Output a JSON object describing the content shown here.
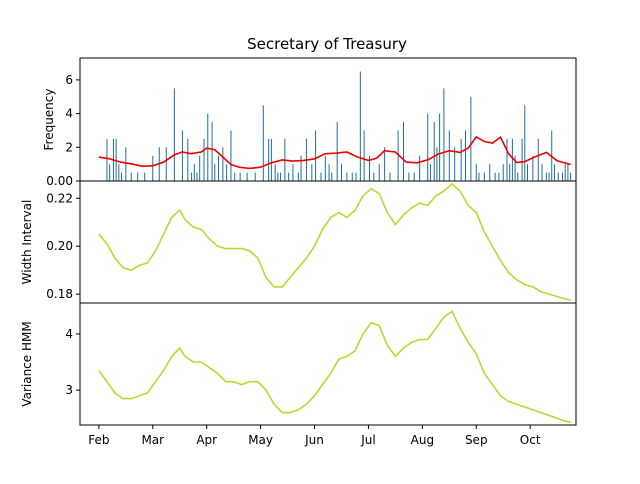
{
  "figure": {
    "title": "Secretary of Treasury",
    "x_tick_labels": [
      "Feb",
      "Mar",
      "Apr",
      "May",
      "Jun",
      "Jul",
      "Aug",
      "Sep",
      "Oct"
    ]
  },
  "chart_data": [
    {
      "type": "bar",
      "panel": "top",
      "ylabel": "Frequency",
      "ylim": [
        0,
        7.3
      ],
      "y_ticks": [
        0,
        2,
        4,
        6
      ],
      "x_unit": "months since Feb 1",
      "xlim": [
        -0.35,
        8.85
      ],
      "bars": {
        "color": "#1f6e9e",
        "x": [
          0.15,
          0.2,
          0.27,
          0.32,
          0.37,
          0.42,
          0.5,
          0.6,
          0.72,
          0.85,
          1.0,
          1.12,
          1.25,
          1.4,
          1.55,
          1.65,
          1.72,
          1.77,
          1.82,
          1.87,
          1.95,
          2.02,
          2.1,
          2.15,
          2.22,
          2.3,
          2.37,
          2.45,
          2.52,
          2.62,
          2.75,
          2.9,
          3.05,
          3.15,
          3.2,
          3.27,
          3.32,
          3.37,
          3.45,
          3.52,
          3.6,
          3.7,
          3.75,
          3.85,
          3.95,
          4.02,
          4.12,
          4.2,
          4.27,
          4.32,
          4.42,
          4.5,
          4.6,
          4.7,
          4.77,
          4.85,
          4.92,
          5.02,
          5.1,
          5.2,
          5.3,
          5.4,
          5.55,
          5.65,
          5.75,
          5.85,
          5.95,
          6.1,
          6.15,
          6.22,
          6.27,
          6.32,
          6.4,
          6.5,
          6.6,
          6.72,
          6.8,
          6.9,
          7.0,
          7.05,
          7.15,
          7.25,
          7.35,
          7.42,
          7.5,
          7.57,
          7.62,
          7.67,
          7.72,
          7.77,
          7.85,
          7.9,
          7.95,
          8.05,
          8.15,
          8.22,
          8.3,
          8.35,
          8.4,
          8.45,
          8.52,
          8.6,
          8.65,
          8.7,
          8.75
        ],
        "values": [
          2.5,
          1.0,
          2.5,
          2.5,
          1.0,
          0.5,
          2.0,
          0.5,
          0.5,
          0.5,
          1.5,
          2.0,
          2.0,
          5.5,
          3.0,
          2.5,
          0.5,
          1.0,
          0.5,
          1.5,
          2.5,
          4.0,
          3.5,
          1.0,
          1.5,
          2.0,
          1.0,
          3.0,
          0.5,
          0.5,
          0.5,
          0.5,
          4.5,
          2.5,
          2.5,
          1.0,
          0.5,
          0.5,
          2.5,
          0.5,
          1.0,
          0.5,
          1.5,
          2.5,
          1.0,
          3.0,
          0.5,
          1.5,
          1.0,
          0.5,
          3.5,
          1.0,
          0.5,
          0.5,
          0.5,
          6.5,
          3.0,
          1.5,
          0.5,
          1.0,
          2.0,
          0.5,
          3.0,
          3.5,
          0.5,
          0.5,
          1.5,
          4.0,
          1.0,
          3.5,
          2.0,
          4.0,
          5.5,
          3.0,
          2.0,
          2.5,
          3.0,
          5.0,
          1.0,
          0.5,
          0.5,
          1.0,
          0.5,
          0.5,
          1.0,
          2.5,
          1.0,
          2.5,
          1.5,
          0.5,
          2.5,
          4.5,
          1.0,
          1.5,
          2.5,
          1.0,
          0.5,
          0.5,
          3.0,
          1.0,
          0.5,
          0.5,
          1.0,
          1.0,
          0.5
        ]
      },
      "smoothed_line": {
        "color": "#ee0000",
        "x": [
          0.0,
          0.2,
          0.4,
          0.6,
          0.8,
          1.0,
          1.2,
          1.4,
          1.55,
          1.7,
          1.9,
          2.0,
          2.15,
          2.3,
          2.45,
          2.6,
          2.8,
          3.0,
          3.2,
          3.4,
          3.6,
          3.8,
          4.0,
          4.2,
          4.4,
          4.6,
          4.8,
          5.0,
          5.15,
          5.3,
          5.5,
          5.7,
          5.9,
          6.1,
          6.3,
          6.5,
          6.7,
          6.85,
          7.0,
          7.15,
          7.3,
          7.45,
          7.6,
          7.75,
          7.9,
          8.1,
          8.3,
          8.5,
          8.75
        ],
        "values": [
          1.42,
          1.32,
          1.12,
          1.02,
          0.88,
          0.9,
          1.12,
          1.55,
          1.72,
          1.62,
          1.72,
          1.95,
          1.85,
          1.42,
          0.98,
          0.82,
          0.75,
          0.82,
          1.08,
          1.25,
          1.18,
          1.22,
          1.32,
          1.62,
          1.65,
          1.72,
          1.42,
          1.22,
          1.35,
          1.8,
          1.72,
          1.12,
          1.08,
          1.25,
          1.6,
          1.8,
          1.7,
          1.95,
          2.62,
          2.35,
          2.25,
          2.6,
          1.62,
          1.1,
          1.15,
          1.45,
          1.7,
          1.2,
          0.98
        ]
      }
    },
    {
      "type": "line",
      "panel": "middle",
      "ylabel": "Width Interval",
      "ylim": [
        0.1763,
        0.2272
      ],
      "y_ticks": [
        0.18,
        0.2,
        0.22
      ],
      "x_unit": "months since Feb 1",
      "xlim": [
        -0.35,
        8.85
      ],
      "color": "#b8d832",
      "x": [
        0.0,
        0.15,
        0.3,
        0.45,
        0.6,
        0.75,
        0.9,
        1.05,
        1.2,
        1.35,
        1.5,
        1.6,
        1.75,
        1.9,
        2.05,
        2.2,
        2.35,
        2.5,
        2.65,
        2.8,
        2.95,
        3.1,
        3.25,
        3.4,
        3.55,
        3.7,
        3.85,
        4.0,
        4.15,
        4.3,
        4.45,
        4.6,
        4.75,
        4.9,
        5.05,
        5.2,
        5.35,
        5.5,
        5.65,
        5.8,
        5.95,
        6.1,
        6.25,
        6.4,
        6.55,
        6.7,
        6.85,
        7.0,
        7.15,
        7.3,
        7.45,
        7.6,
        7.75,
        7.9,
        8.05,
        8.2,
        8.35,
        8.5,
        8.65,
        8.75
      ],
      "values": [
        0.205,
        0.201,
        0.195,
        0.191,
        0.19,
        0.192,
        0.193,
        0.198,
        0.205,
        0.212,
        0.215,
        0.211,
        0.208,
        0.207,
        0.203,
        0.2,
        0.199,
        0.199,
        0.199,
        0.198,
        0.195,
        0.187,
        0.183,
        0.183,
        0.187,
        0.191,
        0.195,
        0.2,
        0.207,
        0.212,
        0.214,
        0.212,
        0.215,
        0.221,
        0.224,
        0.222,
        0.214,
        0.209,
        0.213,
        0.216,
        0.218,
        0.217,
        0.221,
        0.223,
        0.226,
        0.223,
        0.217,
        0.214,
        0.206,
        0.2,
        0.194,
        0.189,
        0.186,
        0.184,
        0.183,
        0.181,
        0.18,
        0.179,
        0.178,
        0.1775
      ]
    },
    {
      "type": "line",
      "panel": "bottom",
      "ylabel": "Variance HMM",
      "ylim": [
        2.38,
        4.55
      ],
      "y_ticks": [
        3,
        4
      ],
      "x_unit": "months since Feb 1",
      "xlim": [
        -0.35,
        8.85
      ],
      "color": "#b8d832",
      "x": [
        0.0,
        0.15,
        0.3,
        0.45,
        0.6,
        0.75,
        0.9,
        1.05,
        1.2,
        1.35,
        1.5,
        1.6,
        1.75,
        1.9,
        2.05,
        2.2,
        2.35,
        2.5,
        2.65,
        2.8,
        2.95,
        3.1,
        3.25,
        3.4,
        3.55,
        3.7,
        3.85,
        4.0,
        4.15,
        4.3,
        4.45,
        4.6,
        4.75,
        4.9,
        5.05,
        5.2,
        5.35,
        5.5,
        5.65,
        5.8,
        5.95,
        6.1,
        6.25,
        6.4,
        6.55,
        6.7,
        6.85,
        7.0,
        7.15,
        7.3,
        7.45,
        7.6,
        7.75,
        7.9,
        8.05,
        8.2,
        8.35,
        8.5,
        8.65,
        8.75
      ],
      "values": [
        3.35,
        3.15,
        2.95,
        2.85,
        2.85,
        2.9,
        2.95,
        3.15,
        3.35,
        3.6,
        3.75,
        3.6,
        3.5,
        3.5,
        3.4,
        3.3,
        3.15,
        3.15,
        3.1,
        3.15,
        3.15,
        3.0,
        2.75,
        2.6,
        2.6,
        2.65,
        2.75,
        2.9,
        3.1,
        3.3,
        3.55,
        3.6,
        3.7,
        4.0,
        4.2,
        4.15,
        3.8,
        3.6,
        3.75,
        3.85,
        3.9,
        3.9,
        4.1,
        4.3,
        4.4,
        4.1,
        3.85,
        3.65,
        3.3,
        3.1,
        2.9,
        2.8,
        2.75,
        2.7,
        2.65,
        2.6,
        2.55,
        2.5,
        2.45,
        2.43
      ]
    }
  ]
}
